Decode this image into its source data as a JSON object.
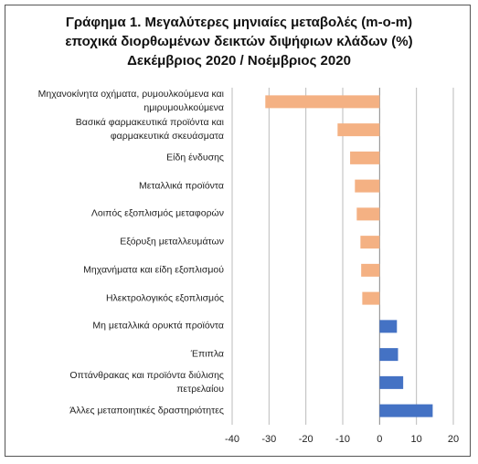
{
  "chart_data": {
    "type": "hbar",
    "title": "Γράφημα 1. Μεγαλύτερες μηνιαίες μεταβολές (m-o-m)\nεποχικά διορθωμένων δεικτών διψήφιων κλάδων (%)\nΔεκέμβριος 2020 / Νοέμβριος 2020",
    "categories": [
      "Μηχανοκίνητα οχήματα, ρυμουλκούμενα και\nημιρυμουλκούμενα",
      "Βασικά φαρμακευτικά προϊόντα και\nφαρμακευτικά σκευάσματα",
      "Είδη ένδυσης",
      "Μεταλλικά προϊόντα",
      "Λοιπός εξοπλισμός μεταφορών",
      "Εξόρυξη μεταλλευμάτων",
      "Μηχανήματα και είδη εξοπλισμού",
      "Ηλεκτρολογικός εξοπλισμός",
      "Μη μεταλλικά ορυκτά προϊόντα",
      "Έπιπλα",
      "Οπτάνθρακας και προϊόντα διύλισης\nπετρελαίου",
      "Άλλες μεταποιητικές δραστηριότητες"
    ],
    "values": [
      -31,
      -11.4,
      -8,
      -6.7,
      -6.2,
      -5.2,
      -5,
      -4.7,
      4.7,
      5,
      6.4,
      14.4
    ],
    "colors": [
      "#f4b183",
      "#f4b183",
      "#f4b183",
      "#f4b183",
      "#f4b183",
      "#f4b183",
      "#f4b183",
      "#f4b183",
      "#4472c4",
      "#4472c4",
      "#4472c4",
      "#4472c4"
    ],
    "xlim": [
      -40,
      20
    ],
    "xticks": [
      -40,
      -30,
      -20,
      -10,
      0,
      10,
      20
    ],
    "grid": true
  }
}
